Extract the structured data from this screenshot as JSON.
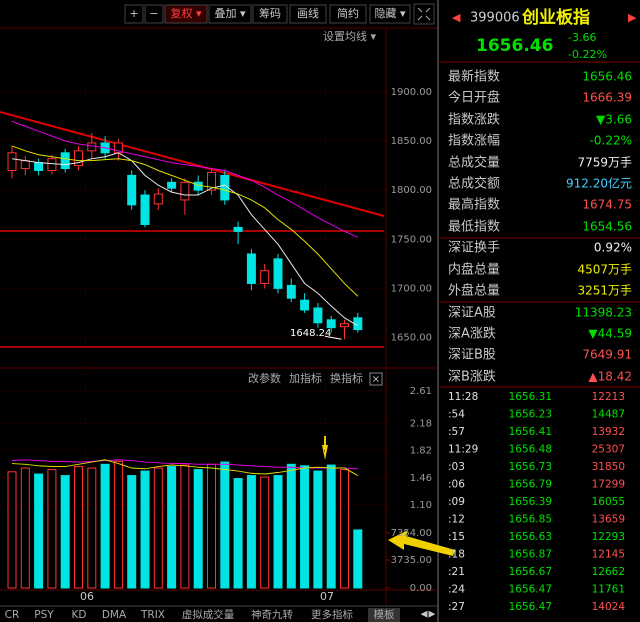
{
  "toolbar": {
    "buttons": [
      "+",
      "−",
      "复权 ▾",
      "叠加 ▾",
      "筹码",
      "画线",
      "简约",
      "隐藏 ▾"
    ]
  },
  "chart_data": [
    {
      "type": "candlestick",
      "label": "设置均线 ▾",
      "ylim": [
        1622,
        1963
      ],
      "yticks": [
        {
          "value": 1900,
          "label": "1900.00"
        },
        {
          "value": 1850,
          "label": "1850.00"
        },
        {
          "value": 1800,
          "label": "1800.00"
        },
        {
          "value": 1750,
          "label": "1750.00"
        },
        {
          "value": 1700,
          "label": "1700.00"
        },
        {
          "value": 1650,
          "label": "1650.00"
        }
      ],
      "up_color": "#ff3232",
      "down_color": "#00e4e4",
      "open": [
        1820,
        1822,
        1828,
        1820,
        1838,
        1825,
        1840,
        1848,
        1838,
        1815,
        1795,
        1786,
        1808,
        1790,
        1808,
        1800,
        1815,
        1762,
        1735,
        1705,
        1730,
        1703,
        1688,
        1680,
        1668,
        1661,
        1670
      ],
      "high": [
        1845,
        1835,
        1832,
        1836,
        1842,
        1845,
        1858,
        1855,
        1852,
        1820,
        1800,
        1802,
        1812,
        1812,
        1815,
        1822,
        1820,
        1768,
        1740,
        1725,
        1735,
        1710,
        1695,
        1685,
        1672,
        1668,
        1675
      ],
      "low": [
        1812,
        1815,
        1815,
        1816,
        1818,
        1820,
        1832,
        1832,
        1830,
        1780,
        1762,
        1780,
        1798,
        1775,
        1795,
        1795,
        1785,
        1745,
        1698,
        1700,
        1695,
        1686,
        1675,
        1660,
        1655,
        1648.24,
        1655
      ],
      "close": [
        1838,
        1830,
        1820,
        1832,
        1822,
        1840,
        1848,
        1838,
        1848,
        1785,
        1765,
        1796,
        1802,
        1808,
        1800,
        1818,
        1790,
        1758,
        1705,
        1718,
        1700,
        1690,
        1678,
        1665,
        1660,
        1664,
        1658
      ],
      "ma": [
        {
          "color": "#e8e8e8",
          "values": [
            1832,
            1830,
            1828,
            1827,
            1826,
            1828,
            1832,
            1834,
            1838,
            1830,
            1815,
            1805,
            1798,
            1795,
            1795,
            1802,
            1805,
            1795,
            1775,
            1760,
            1745,
            1725,
            1705,
            1695,
            1682,
            1670,
            1662
          ]
        },
        {
          "color": "#e0e000",
          "values": [
            1845,
            1840,
            1836,
            1834,
            1832,
            1830,
            1830,
            1831,
            1832,
            1830,
            1826,
            1820,
            1815,
            1810,
            1805,
            1803,
            1800,
            1796,
            1790,
            1782,
            1770,
            1760,
            1748,
            1735,
            1720,
            1705,
            1692
          ]
        },
        {
          "color": "#e000e0",
          "values": [
            1870,
            1865,
            1860,
            1855,
            1850,
            1847,
            1845,
            1843,
            1840,
            1837,
            1834,
            1831,
            1828,
            1826,
            1824,
            1822,
            1820,
            1815,
            1810,
            1803,
            1795,
            1788,
            1780,
            1772,
            1765,
            1758,
            1752
          ]
        }
      ],
      "low_label": 1648.24
    },
    {
      "type": "bar",
      "menu": [
        "改参数",
        "加指标",
        "换指标"
      ],
      "ylim": [
        0,
        26680
      ],
      "yticks": [
        {
          "value": 7354,
          "label": "7354.00"
        },
        {
          "value": 3735,
          "label": "3735.00"
        },
        {
          "value": 0,
          "label": "0.00"
        }
      ],
      "y2lim": [
        0,
        2.65
      ],
      "y2ticks": [
        2.61,
        2.18,
        1.82,
        {
          "value": 1.46,
          "label": "1.46"
        },
        {
          "value": 1.1,
          "label": "1.10"
        }
      ],
      "values": [
        15500,
        16000,
        15200,
        15800,
        15000,
        16200,
        16000,
        16500,
        16900,
        15000,
        15600,
        16000,
        16200,
        16400,
        15800,
        16500,
        16800,
        14600,
        15000,
        14800,
        15000,
        16500,
        16300,
        15600,
        16400,
        15800,
        7750
      ],
      "series": [
        {
          "color": "#e000e0",
          "values": [
            17000,
            17100,
            17000,
            16900,
            16900,
            16800,
            16900,
            17000,
            17100,
            17000,
            16800,
            16700,
            16600,
            16600,
            16500,
            16500,
            16500,
            16400,
            16300,
            16200,
            16100,
            16100,
            16000,
            16000,
            16000,
            16000,
            15900
          ]
        },
        {
          "color": "#e0e000",
          "values": [
            16600,
            16500,
            16300,
            16200,
            16200,
            16500,
            16800,
            17100,
            16600,
            16000,
            15900,
            16200,
            16400,
            16300,
            16100,
            16000,
            15800,
            15600,
            15300,
            15200,
            15400,
            15700,
            16000,
            16100,
            16000,
            16000,
            15000
          ]
        }
      ],
      "x_labels": [
        "06",
        "07"
      ]
    }
  ],
  "tabs": [
    "CR",
    "PSY",
    "KD",
    "DMA",
    "TRIX",
    "虚拟成交量",
    "神奇九转",
    "更多指标",
    "模板"
  ],
  "quote": {
    "code": "399006",
    "name": "创业板指",
    "price": "1656.46",
    "change": "-3.66",
    "change_pct": "-0.22%",
    "rows": [
      {
        "label": "最新指数",
        "value": "1656.46",
        "color": "#00e000"
      },
      {
        "label": "今日开盘",
        "value": "1666.39",
        "color": "#ff5050"
      },
      {
        "label": "指数涨跌",
        "value": "▼3.66",
        "color": "#00e000"
      },
      {
        "label": "指数涨幅",
        "value": "-0.22%",
        "color": "#00e000"
      },
      {
        "label": "总成交量",
        "value": "7759万手",
        "color": "#f0f0f0"
      },
      {
        "label": "总成交额",
        "value": "912.20亿元",
        "color": "#40d0ff"
      },
      {
        "label": "最高指数",
        "value": "1674.75",
        "color": "#ff5050"
      },
      {
        "label": "最低指数",
        "value": "1654.56",
        "color": "#00e000"
      },
      {
        "label": "深证换手",
        "value": "0.92%",
        "color": "#f0f0f0"
      },
      {
        "label": "内盘总量",
        "value": "4507万手",
        "color": "#f0f000"
      },
      {
        "label": "外盘总量",
        "value": "3251万手",
        "color": "#f0f000"
      },
      {
        "label": "深证A股",
        "value": "11398.23",
        "color": "#00e000"
      },
      {
        "label": "深A涨跌",
        "value": "▼44.59",
        "color": "#00e000"
      },
      {
        "label": "深证B股",
        "value": "7649.91",
        "color": "#ff5050"
      },
      {
        "label": "深B涨跌",
        "value": "▲18.42",
        "color": "#ff5050"
      }
    ],
    "ticks": [
      {
        "time": "11:28",
        "price": "1656.31",
        "volume": "12213",
        "color": "#ff5050"
      },
      {
        "time": ":54",
        "price": "1656.23",
        "volume": "14487",
        "color": "#00e000"
      },
      {
        "time": ":57",
        "price": "1656.41",
        "volume": "13932",
        "color": "#ff5050"
      },
      {
        "time": "11:29",
        "price": "1656.48",
        "volume": "25307",
        "color": "#ff5050"
      },
      {
        "time": ":03",
        "price": "1656.73",
        "volume": "31850",
        "color": "#ff5050"
      },
      {
        "time": ":06",
        "price": "1656.79",
        "volume": "17299",
        "color": "#ff5050"
      },
      {
        "time": ":09",
        "price": "1656.39",
        "volume": "16055",
        "color": "#00e000"
      },
      {
        "time": ":12",
        "price": "1656.85",
        "volume": "13659",
        "color": "#ff5050"
      },
      {
        "time": ":15",
        "price": "1656.63",
        "volume": "12293",
        "color": "#00e000"
      },
      {
        "time": ":18",
        "price": "1656.87",
        "volume": "12145",
        "color": "#ff5050"
      },
      {
        "time": ":21",
        "price": "1656.67",
        "volume": "12662",
        "color": "#00e000"
      },
      {
        "time": ":24",
        "price": "1656.47",
        "volume": "11761",
        "color": "#00e000"
      },
      {
        "time": ":27",
        "price": "1656.47",
        "volume": "14024",
        "color": "#ff5050"
      }
    ]
  }
}
